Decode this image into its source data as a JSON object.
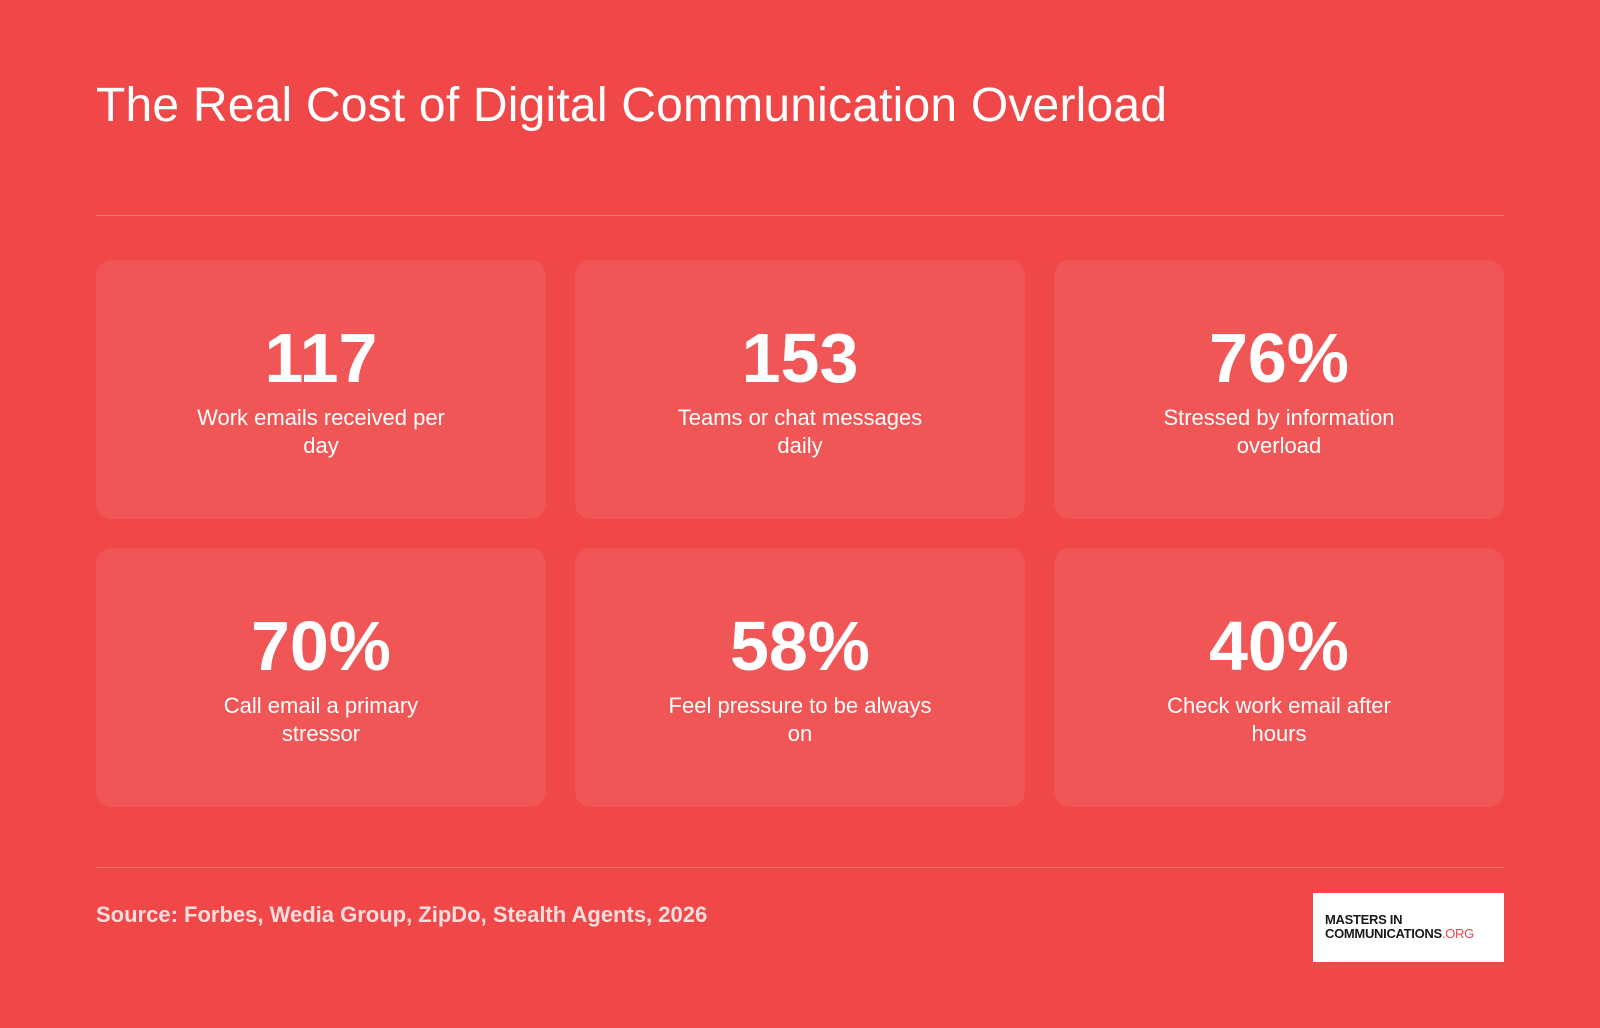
{
  "title": "The Real Cost of Digital Communication Overload",
  "stats": [
    {
      "value": "117",
      "label": "Work emails received per day"
    },
    {
      "value": "153",
      "label": "Teams or chat messages daily"
    },
    {
      "value": "76%",
      "label": "Stressed by information overload"
    },
    {
      "value": "70%",
      "label": "Call email a primary stressor"
    },
    {
      "value": "58%",
      "label": "Feel pressure to be always on"
    },
    {
      "value": "40%",
      "label": "Check work email after hours"
    }
  ],
  "source": "Source: Forbes, Wedia Group, ZipDo, Stealth Agents, 2026",
  "logo": {
    "line1": "MASTERS IN",
    "line2": "COMMUNICATIONS",
    "suffix": ".ORG"
  },
  "colors": {
    "background": "#f04848",
    "text": "#ffffff",
    "logo_accent": "#f04848"
  }
}
